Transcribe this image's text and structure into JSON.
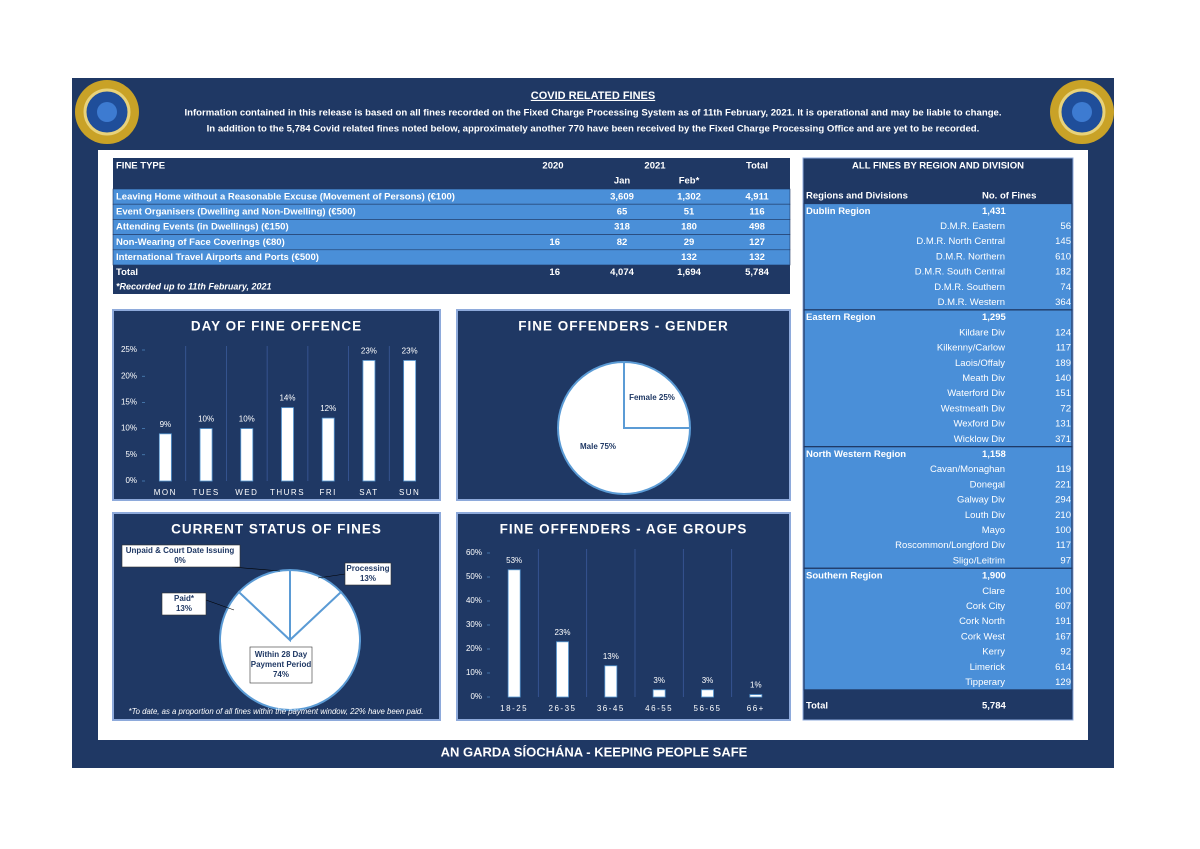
{
  "header": {
    "title": "COVID RELATED FINES",
    "lines": [
      "Information contained in this release is based on all fines recorded on the Fixed Charge Processing System as of 11th February, 2021.  It is operational and may be liable to change.",
      "In addition to the 5,784 Covid related fines noted below, approximately another 770 have been received by the Fixed Charge Processing Office and are yet to be recorded."
    ]
  },
  "fines_table": {
    "headers": [
      "FINE TYPE",
      "2020",
      "2021",
      "Total"
    ],
    "subheaders": [
      "Jan",
      "Feb*"
    ],
    "rows": [
      [
        "Leaving Home without a Reasonable Excuse (Movement of Persons) (€100)",
        null,
        "3,609",
        "1,302",
        "4,911"
      ],
      [
        "Event Organisers (Dwelling and Non-Dwelling) (€500)",
        null,
        "65",
        "51",
        "116"
      ],
      [
        "Attending Events (in Dwellings) (€150)",
        null,
        "318",
        "180",
        "498"
      ],
      [
        "Non-Wearing of Face Coverings (€80)",
        "16",
        "82",
        "29",
        "127"
      ],
      [
        "International Travel Airports and Ports (€500)",
        null,
        null,
        "132",
        "132"
      ]
    ],
    "total_row": [
      "Total",
      "16",
      "4,074",
      "1,694",
      "5,784"
    ],
    "note": "*Recorded up to 11th February, 2021"
  },
  "region_table": {
    "title": "ALL FINES BY REGION AND DIVISION",
    "headers": [
      "Regions and Divisions",
      "No. of Fines"
    ],
    "groups": [
      {
        "name": "Dublin Region",
        "total": "1,431",
        "divisions": [
          {
            "name": "D.M.R. Eastern",
            "value": "56"
          },
          {
            "name": "D.M.R. North Central",
            "value": "145"
          },
          {
            "name": "D.M.R. Northern",
            "value": "610"
          },
          {
            "name": "D.M.R. South Central",
            "value": "182"
          },
          {
            "name": "D.M.R. Southern",
            "value": "74"
          },
          {
            "name": "D.M.R. Western",
            "value": "364"
          }
        ]
      },
      {
        "name": "Eastern Region",
        "total": "1,295",
        "divisions": [
          {
            "name": "Kildare Div",
            "value": "124"
          },
          {
            "name": "Kilkenny/Carlow",
            "value": "117"
          },
          {
            "name": "Laois/Offaly",
            "value": "189"
          },
          {
            "name": "Meath Div",
            "value": "140"
          },
          {
            "name": "Waterford Div",
            "value": "151"
          },
          {
            "name": "Westmeath Div",
            "value": "72"
          },
          {
            "name": "Wexford Div",
            "value": "131"
          },
          {
            "name": "Wicklow Div",
            "value": "371"
          }
        ]
      },
      {
        "name": "North Western Region",
        "total": "1,158",
        "divisions": [
          {
            "name": "Cavan/Monaghan",
            "value": "119"
          },
          {
            "name": "Donegal",
            "value": "221"
          },
          {
            "name": "Galway Div",
            "value": "294"
          },
          {
            "name": "Louth Div",
            "value": "210"
          },
          {
            "name": "Mayo",
            "value": "100"
          },
          {
            "name": "Roscommon/Longford Div",
            "value": "117"
          },
          {
            "name": "Sligo/Leitrim",
            "value": "97"
          }
        ]
      },
      {
        "name": "Southern Region",
        "total": "1,900",
        "divisions": [
          {
            "name": "Clare",
            "value": "100"
          },
          {
            "name": "Cork City",
            "value": "607"
          },
          {
            "name": "Cork North",
            "value": "191"
          },
          {
            "name": "Cork West",
            "value": "167"
          },
          {
            "name": "Kerry",
            "value": "92"
          },
          {
            "name": "Limerick",
            "value": "614"
          },
          {
            "name": "Tipperary",
            "value": "129"
          }
        ]
      }
    ],
    "total_label": "Total",
    "total": "5,784"
  },
  "chart_data": [
    {
      "type": "bar",
      "title": "DAY OF FINE OFFENCE",
      "categories": [
        "MON",
        "TUES",
        "WED",
        "THURS",
        "FRI",
        "SAT",
        "SUN"
      ],
      "values": [
        9,
        10,
        10,
        14,
        12,
        23,
        23
      ],
      "value_labels": [
        "9%",
        "10%",
        "10%",
        "14%",
        "12%",
        "23%",
        "23%"
      ],
      "ylim": [
        0,
        25
      ],
      "yticks": [
        {
          "value": 0,
          "label": "0%"
        },
        {
          "value": 5,
          "label": "5%"
        },
        {
          "value": 10,
          "label": "10%"
        },
        {
          "value": 15,
          "label": "15%"
        },
        {
          "value": 20,
          "label": "20%"
        },
        {
          "value": 25,
          "label": "25%"
        }
      ],
      "color": "#ffffff"
    },
    {
      "type": "pie",
      "title": "FINE OFFENDERS - GENDER",
      "values": [
        25,
        75
      ],
      "value_labels": [
        "Female 25%",
        "Male 75%"
      ],
      "color": "#ffffff"
    },
    {
      "type": "pie",
      "title": "CURRENT STATUS OF FINES",
      "values": [
        0,
        13,
        74,
        13
      ],
      "value_labels": [
        "Unpaid & Court Date Issuing\n0%",
        "Processing\n13%",
        "Within 28 Day\nPayment Period\n74%",
        "Paid*\n13%"
      ],
      "note": "*To date, as a proportion of all fines within the payment window, 22% have been paid.",
      "color": "#ffffff"
    },
    {
      "type": "bar",
      "title": "FINE OFFENDERS - AGE GROUPS",
      "categories": [
        "18-25",
        "26-35",
        "36-45",
        "46-55",
        "56-65",
        "66+"
      ],
      "values": [
        53,
        23,
        13,
        3,
        3,
        1
      ],
      "value_labels": [
        "53%",
        "23%",
        "13%",
        "3%",
        "3%",
        "1%"
      ],
      "ylim": [
        0,
        60
      ],
      "yticks": [
        {
          "value": 0,
          "label": "0%"
        },
        {
          "value": 10,
          "label": "10%"
        },
        {
          "value": 20,
          "label": "20%"
        },
        {
          "value": 30,
          "label": "30%"
        },
        {
          "value": 40,
          "label": "40%"
        },
        {
          "value": 50,
          "label": "50%"
        },
        {
          "value": 60,
          "label": "60%"
        }
      ],
      "color": "#ffffff"
    }
  ],
  "footer": "AN GARDA SÍOCHÁNA - KEEPING PEOPLE SAFE"
}
